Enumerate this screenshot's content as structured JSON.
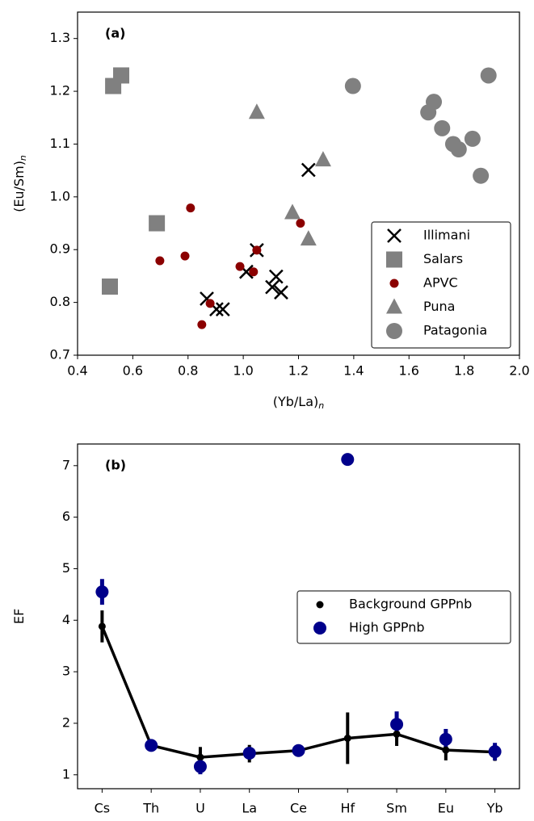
{
  "chart_data": [
    {
      "type": "scatter",
      "panel_label": "(a)",
      "x_label": "(Yb/La)",
      "x_label_sub": "n",
      "y_label": "(Eu/Sm)",
      "y_label_sub": "n",
      "xlim": [
        0.4,
        2.0
      ],
      "ylim": [
        0.7,
        1.35
      ],
      "xticks": [
        0.4,
        0.6,
        0.8,
        {
          "value": 1.0,
          "label": "1.0"
        },
        1.2,
        1.4,
        1.6,
        1.8,
        {
          "value": 2.0,
          "label": "2.0"
        }
      ],
      "yticks": [
        0.7,
        0.8,
        0.9,
        {
          "value": 1.0,
          "label": "1.0"
        },
        1.1,
        1.2,
        1.3
      ],
      "legend": "lower right",
      "series": [
        {
          "name": "Illimani",
          "color": "#000000",
          "marker": "x",
          "x": [
            0.868,
            0.903,
            0.926,
            1.011,
            1.049,
            1.119,
            1.105,
            1.137,
            1.236
          ],
          "values": [
            0.807,
            0.787,
            0.787,
            0.858,
            0.899,
            0.849,
            0.829,
            0.819,
            1.051
          ]
        },
        {
          "name": "Salars",
          "color": "#808080",
          "marker": "s",
          "x": [
            0.529,
            0.558,
            0.687,
            0.517
          ],
          "values": [
            1.21,
            1.23,
            0.95,
            0.83
          ]
        },
        {
          "name": "APVC",
          "color": "#8b0000",
          "marker": "dot",
          "x": [
            0.698,
            0.789,
            0.809,
            0.88,
            0.85,
            0.988,
            1.037,
            1.049,
            1.207
          ],
          "values": [
            0.879,
            0.888,
            0.979,
            0.798,
            0.758,
            0.868,
            0.858,
            0.899,
            0.95
          ]
        },
        {
          "name": "Puna",
          "color": "#808080",
          "marker": "^",
          "x": [
            1.049,
            1.289,
            1.178,
            1.236
          ],
          "values": [
            1.16,
            1.07,
            0.97,
            0.92
          ]
        },
        {
          "name": "Patagonia",
          "color": "#808080",
          "marker": "o",
          "x": [
            1.397,
            1.888,
            1.69,
            1.67,
            1.72,
            1.76,
            1.78,
            1.83,
            1.86
          ],
          "values": [
            1.21,
            1.23,
            1.18,
            1.16,
            1.13,
            1.1,
            1.09,
            1.11,
            1.04
          ]
        }
      ]
    },
    {
      "type": "errorbar",
      "panel_label": "(b)",
      "y_label": "EF",
      "categories": [
        "Cs",
        "Th",
        "U",
        "La",
        "Ce",
        "Hf",
        "Sm",
        "Eu",
        "Yb"
      ],
      "ylim": [
        0.73,
        7.42
      ],
      "yticks": [
        1,
        2,
        3,
        4,
        5,
        6,
        7
      ],
      "legend": "upper right",
      "series": [
        {
          "name": "Background GPPnb",
          "color": "#000000",
          "line": true,
          "values": [
            3.88,
            1.57,
            1.34,
            1.41,
            1.47,
            1.71,
            1.79,
            1.48,
            1.44
          ],
          "errors": [
            0.31,
            0.1,
            0.2,
            0.17,
            0.12,
            0.5,
            0.23,
            0.2,
            0.17
          ]
        },
        {
          "name": "High GPPnb",
          "color": "#00008b",
          "line": false,
          "values": [
            4.55,
            1.57,
            1.16,
            1.42,
            1.47,
            7.12,
            1.98,
            1.69,
            1.45
          ],
          "errors": [
            0.25,
            0.08,
            0.15,
            0.1,
            0.1,
            null,
            0.25,
            0.2,
            0.17
          ]
        }
      ]
    }
  ]
}
